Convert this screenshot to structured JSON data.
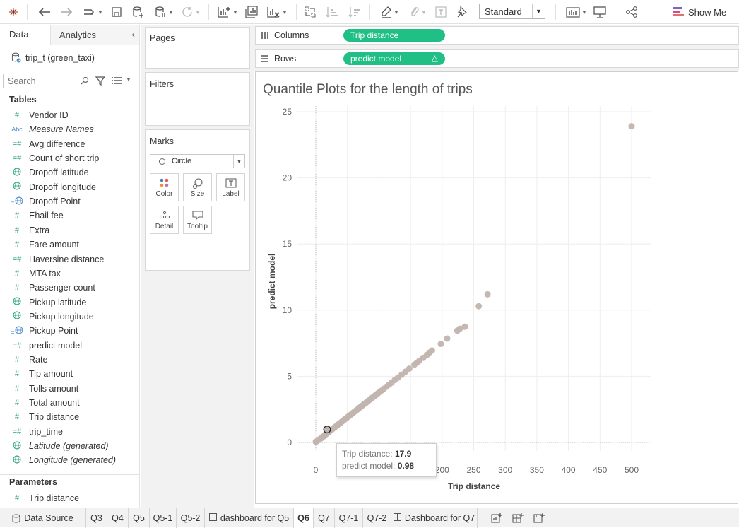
{
  "toolbar": {
    "icons": [
      "tableau-logo-icon",
      "undo-icon",
      "redo-icon",
      "replay-icon",
      "save-icon",
      "new-datasource-icon",
      "pause-updates-icon",
      "refresh-icon",
      "new-worksheet-icon",
      "duplicate-sheet-icon",
      "clear-sheet-icon",
      "swap-icon",
      "sort-asc-icon",
      "sort-desc-icon",
      "highlight-icon",
      "annotate-icon",
      "text-icon",
      "pin-icon",
      "show-cards-icon",
      "presentation-icon",
      "share-icon"
    ],
    "fit_value": "Standard",
    "show_me_label": "Show Me"
  },
  "left_panel": {
    "tab_data": "Data",
    "tab_analytics": "Analytics",
    "datasource": "trip_t (green_taxi)",
    "search_placeholder": "Search",
    "tables_heading": "Tables",
    "fields": [
      {
        "label": "Vendor ID",
        "icon": "#",
        "kind": "teal"
      },
      {
        "label": "Measure Names",
        "icon": "Abc",
        "kind": "blue",
        "italic": true
      },
      {
        "label": "Avg difference",
        "icon": "=#",
        "kind": "teal"
      },
      {
        "label": "Count of short trip",
        "icon": "=#",
        "kind": "teal"
      },
      {
        "label": "Dropoff latitude",
        "icon": "globe",
        "kind": "teal"
      },
      {
        "label": "Dropoff longitude",
        "icon": "globe",
        "kind": "teal"
      },
      {
        "label": "Dropoff Point",
        "icon": "=globe",
        "kind": "blue"
      },
      {
        "label": "Ehail fee",
        "icon": "#",
        "kind": "teal"
      },
      {
        "label": "Extra",
        "icon": "#",
        "kind": "teal"
      },
      {
        "label": "Fare amount",
        "icon": "#",
        "kind": "teal"
      },
      {
        "label": "Haversine distance",
        "icon": "=#",
        "kind": "teal"
      },
      {
        "label": "MTA tax",
        "icon": "#",
        "kind": "teal"
      },
      {
        "label": "Passenger count",
        "icon": "#",
        "kind": "teal"
      },
      {
        "label": "Pickup latitude",
        "icon": "globe",
        "kind": "teal"
      },
      {
        "label": "Pickup longitude",
        "icon": "globe",
        "kind": "teal"
      },
      {
        "label": "Pickup Point",
        "icon": "=globe",
        "kind": "blue"
      },
      {
        "label": "predict model",
        "icon": "=#",
        "kind": "teal"
      },
      {
        "label": "Rate",
        "icon": "#",
        "kind": "teal"
      },
      {
        "label": "Tip amount",
        "icon": "#",
        "kind": "teal"
      },
      {
        "label": "Tolls amount",
        "icon": "#",
        "kind": "teal"
      },
      {
        "label": "Total amount",
        "icon": "#",
        "kind": "teal"
      },
      {
        "label": "Trip distance",
        "icon": "#",
        "kind": "teal"
      },
      {
        "label": "trip_time",
        "icon": "=#",
        "kind": "teal"
      },
      {
        "label": "Latitude (generated)",
        "icon": "globe",
        "kind": "teal",
        "italic": true
      },
      {
        "label": "Longitude (generated)",
        "icon": "globe",
        "kind": "teal",
        "italic": true
      }
    ],
    "parameters_heading": "Parameters",
    "parameters": [
      {
        "label": "Trip distance",
        "icon": "#",
        "kind": "teal"
      }
    ]
  },
  "cards": {
    "pages_title": "Pages",
    "filters_title": "Filters",
    "marks_title": "Marks",
    "mark_type": "Circle",
    "buttons": {
      "color": "Color",
      "size": "Size",
      "label": "Label",
      "detail": "Detail",
      "tooltip": "Tooltip"
    }
  },
  "shelves": {
    "columns_label": "Columns",
    "columns_pill": "Trip distance",
    "rows_label": "Rows",
    "rows_pill": "predict model",
    "rows_pill_delta": "△"
  },
  "chart_data": {
    "type": "scatter",
    "title": "Quantile Plots for the length of trips",
    "xlabel": "Trip distance",
    "ylabel": "predict model",
    "xlim": [
      0,
      530
    ],
    "ylim": [
      0,
      25
    ],
    "x_ticks": [
      0,
      50,
      100,
      150,
      200,
      250,
      300,
      350,
      400,
      450,
      500
    ],
    "y_ticks": [
      0,
      5,
      10,
      15,
      20,
      25
    ],
    "mark_color": "#c2b4ae",
    "points": [
      [
        0,
        0.05
      ],
      [
        2,
        0.1
      ],
      [
        4,
        0.18
      ],
      [
        6,
        0.25
      ],
      [
        8,
        0.3
      ],
      [
        10,
        0.4
      ],
      [
        12,
        0.45
      ],
      [
        14,
        0.55
      ],
      [
        16,
        0.62
      ],
      [
        18,
        0.7
      ],
      [
        20,
        0.78
      ],
      [
        22,
        0.85
      ],
      [
        24,
        0.92
      ],
      [
        26,
        1.0
      ],
      [
        28,
        1.08
      ],
      [
        30,
        1.15
      ],
      [
        32,
        1.22
      ],
      [
        34,
        1.3
      ],
      [
        36,
        1.38
      ],
      [
        38,
        1.45
      ],
      [
        40,
        1.52
      ],
      [
        42,
        1.6
      ],
      [
        44,
        1.68
      ],
      [
        46,
        1.75
      ],
      [
        48,
        1.82
      ],
      [
        50,
        1.9
      ],
      [
        52,
        1.98
      ],
      [
        54,
        2.05
      ],
      [
        56,
        2.12
      ],
      [
        58,
        2.2
      ],
      [
        60,
        2.28
      ],
      [
        62,
        2.35
      ],
      [
        64,
        2.42
      ],
      [
        66,
        2.5
      ],
      [
        68,
        2.58
      ],
      [
        70,
        2.65
      ],
      [
        72,
        2.72
      ],
      [
        74,
        2.8
      ],
      [
        76,
        2.88
      ],
      [
        78,
        2.95
      ],
      [
        80,
        3.02
      ],
      [
        82,
        3.1
      ],
      [
        84,
        3.18
      ],
      [
        86,
        3.25
      ],
      [
        88,
        3.32
      ],
      [
        90,
        3.4
      ],
      [
        92,
        3.48
      ],
      [
        94,
        3.55
      ],
      [
        96,
        3.62
      ],
      [
        98,
        3.7
      ],
      [
        100,
        3.78
      ],
      [
        104,
        3.92
      ],
      [
        108,
        4.07
      ],
      [
        112,
        4.22
      ],
      [
        116,
        4.37
      ],
      [
        120,
        4.52
      ],
      [
        125,
        4.72
      ],
      [
        130,
        4.9
      ],
      [
        136,
        5.12
      ],
      [
        142,
        5.35
      ],
      [
        148,
        5.58
      ],
      [
        156,
        5.88
      ],
      [
        160,
        6.02
      ],
      [
        164,
        6.18
      ],
      [
        170,
        6.4
      ],
      [
        176,
        6.62
      ],
      [
        180,
        6.8
      ],
      [
        184,
        6.95
      ],
      [
        198,
        7.45
      ],
      [
        208,
        7.85
      ],
      [
        224,
        8.45
      ],
      [
        228,
        8.6
      ],
      [
        236,
        8.75
      ],
      [
        258,
        10.3
      ],
      [
        272,
        11.2
      ],
      [
        500,
        23.9
      ]
    ],
    "highlighted_point": {
      "x": 17.9,
      "y": 0.98
    }
  },
  "tooltip": {
    "line1_label": "Trip distance:",
    "line1_value": "17.9",
    "line2_label": "predict model:",
    "line2_value": "0.98"
  },
  "sheet_tabs": {
    "datasource": "Data Source",
    "tabs": [
      {
        "label": "Q3"
      },
      {
        "label": "Q4"
      },
      {
        "label": "Q5"
      },
      {
        "label": "Q5-1"
      },
      {
        "label": "Q5-2"
      },
      {
        "label": "dashboard for Q5",
        "dashboard": true
      },
      {
        "label": "Q6",
        "active": true
      },
      {
        "label": "Q7"
      },
      {
        "label": "Q7-1"
      },
      {
        "label": "Q7-2"
      },
      {
        "label": "Dashboard for Q7",
        "dashboard": true
      }
    ]
  }
}
